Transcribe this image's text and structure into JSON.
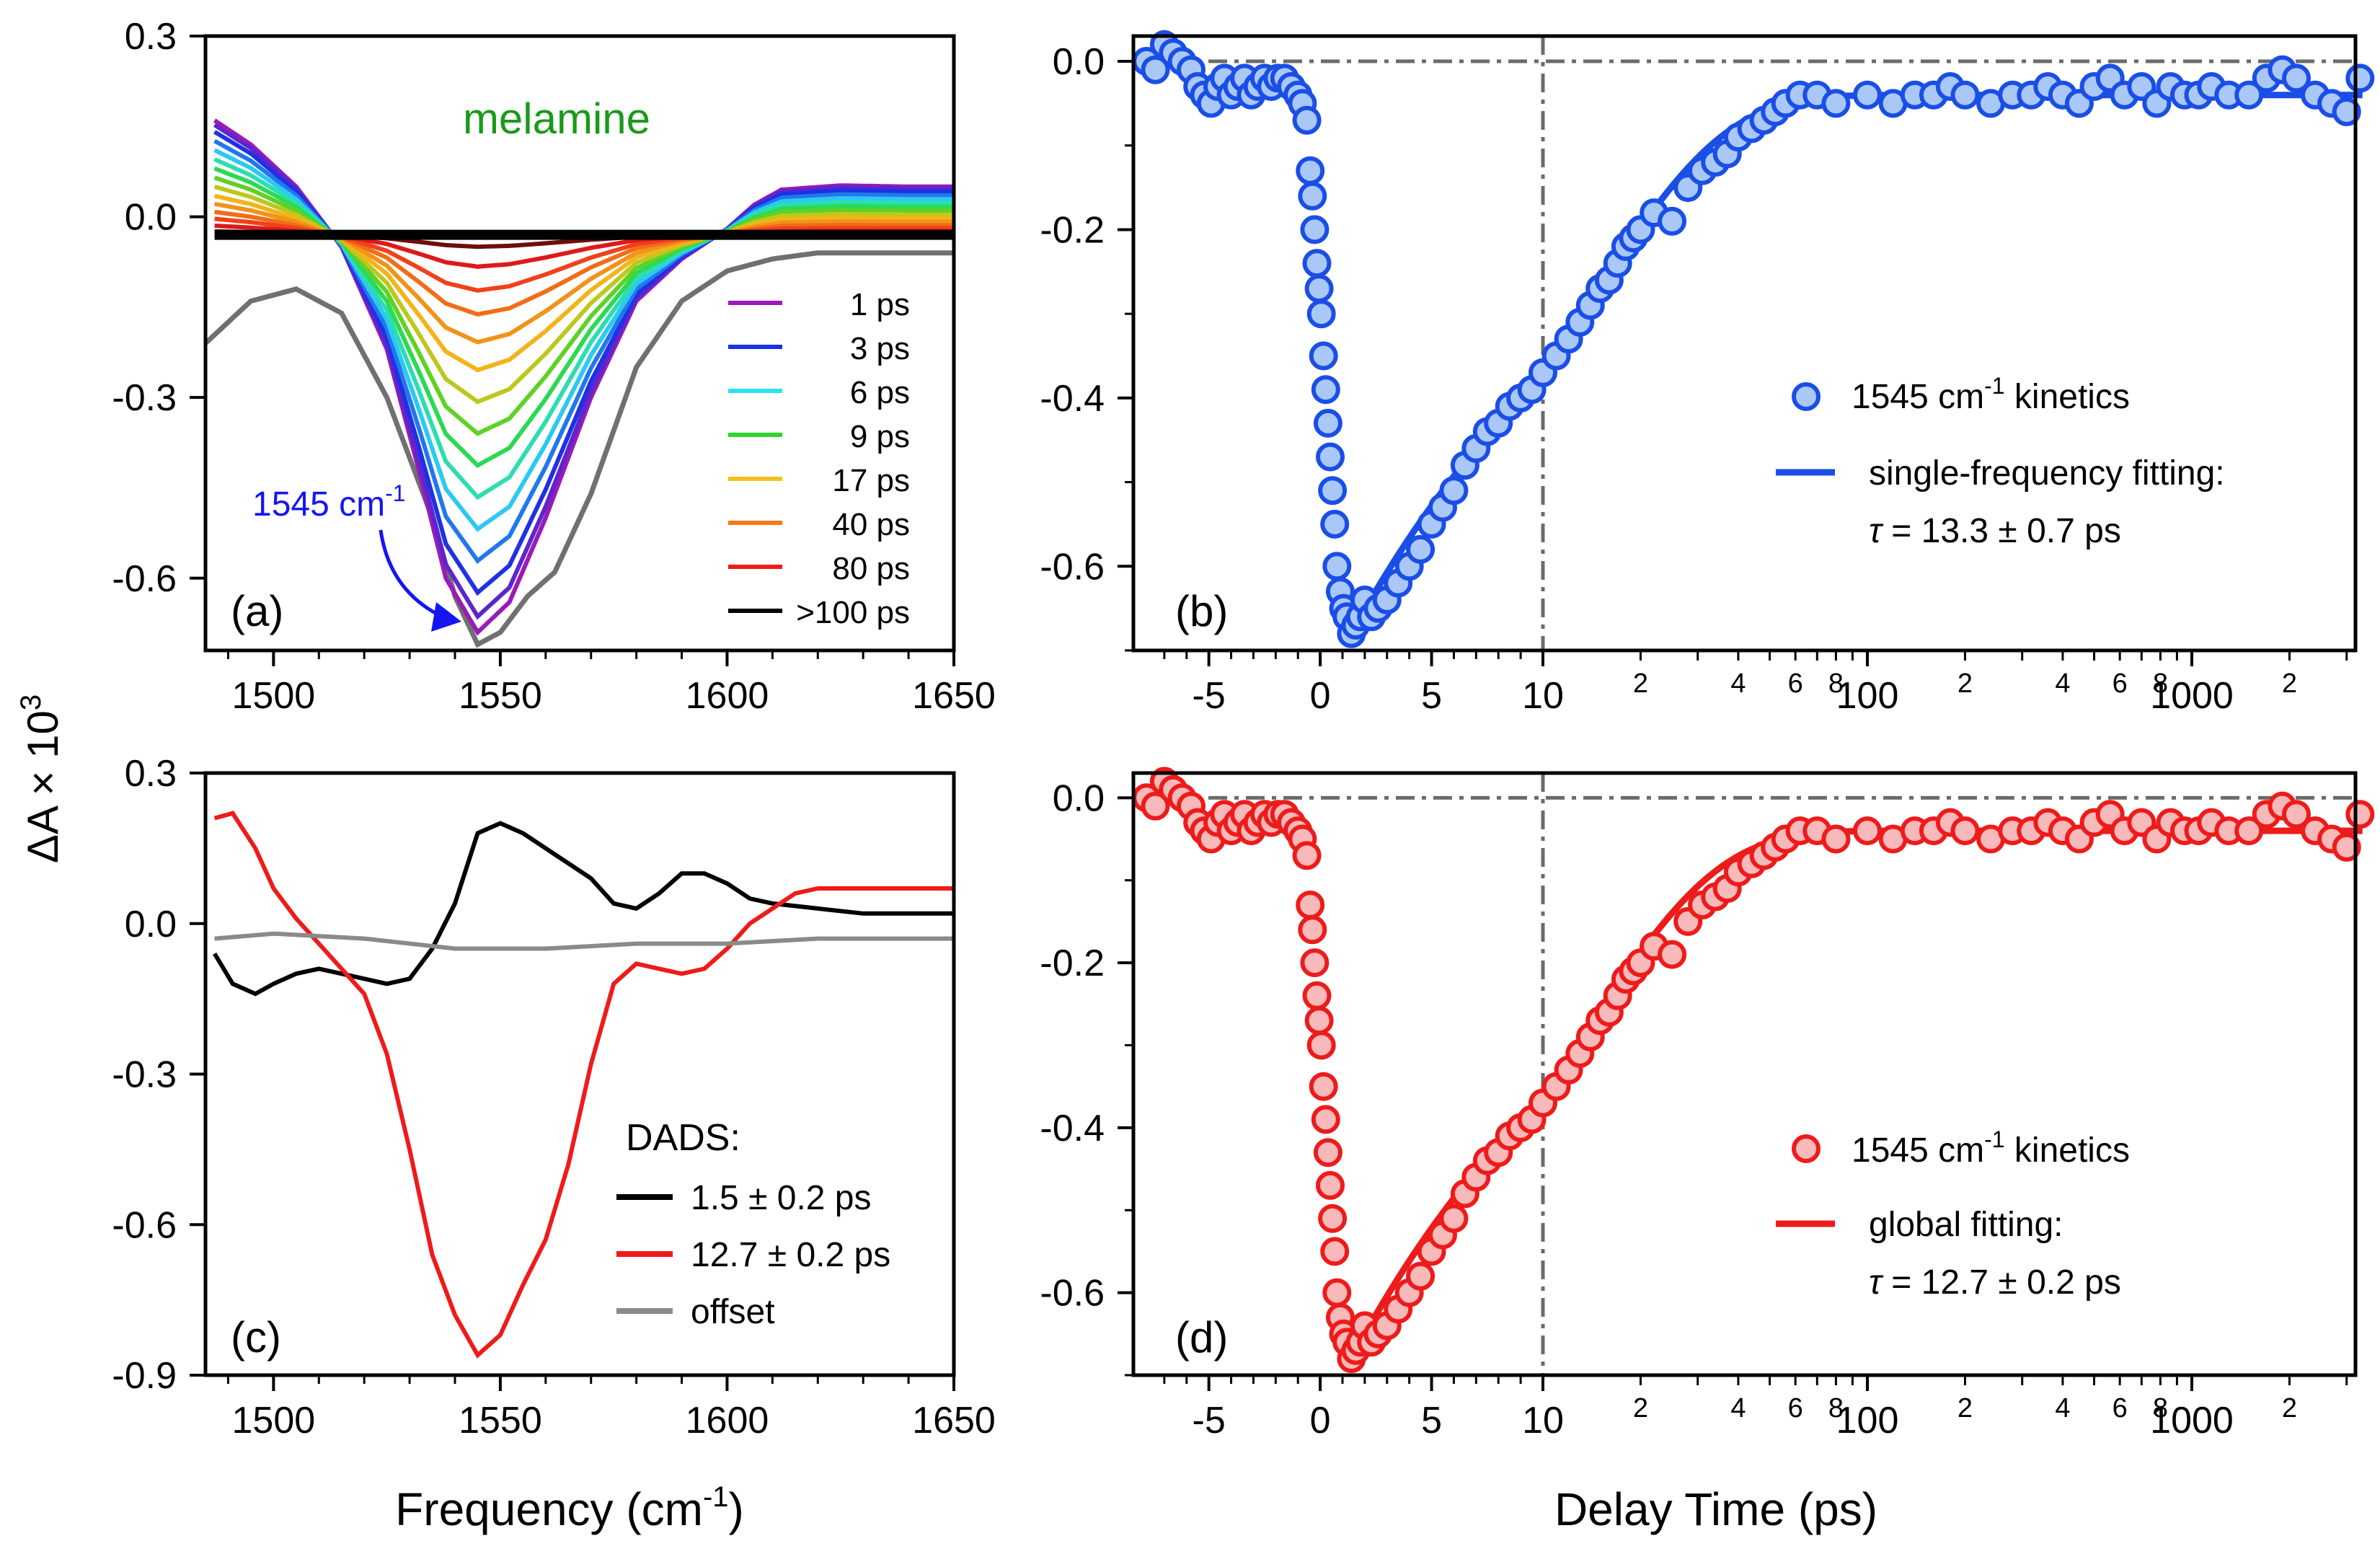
{
  "figure": {
    "y_label_main": "ΔA × 10",
    "y_label_exp": "3",
    "x_label_freq": "Frequency (cm",
    "x_label_freq_exp": "-1",
    "x_label_freq_close": ")",
    "x_label_time": "Delay Time (ps)"
  },
  "chart_data": [
    {
      "id": "a",
      "type": "line",
      "panel_label": "(a)",
      "title": "melamine",
      "xlim": [
        1485,
        1650
      ],
      "ylim": [
        -0.72,
        0.3
      ],
      "x_ticks": [
        1500,
        1550,
        1600,
        1650
      ],
      "x_tick_labels": [
        "1500",
        "1550",
        "1600",
        "1650"
      ],
      "y_ticks": [
        0.3,
        0.0,
        -0.3,
        -0.6
      ],
      "y_tick_labels": [
        "0.3",
        "0.0",
        "-0.3",
        "-0.6"
      ],
      "annotation": {
        "text": "1545 cm",
        "sup": "-1",
        "x": 1545,
        "y": -0.7,
        "color": "#1515f0"
      },
      "legend": [
        {
          "label": "1 ps",
          "color": "#9b1ab8"
        },
        {
          "label": "3 ps",
          "color": "#1733e6"
        },
        {
          "label": "6 ps",
          "color": "#2ee0f5"
        },
        {
          "label": "9 ps",
          "color": "#2ad82a"
        },
        {
          "label": "17 ps",
          "color": "#f2c21a"
        },
        {
          "label": "40 ps",
          "color": "#f27a18"
        },
        {
          "label": "80 ps",
          "color": "#ee1b1b"
        },
        {
          "label": ">100 ps",
          "color": "#000000"
        }
      ],
      "series_model": {
        "description": "transient spectra, amplitude decays with delay",
        "x": [
          1487,
          1495,
          1505,
          1515,
          1525,
          1532,
          1538,
          1545,
          1552,
          1560,
          1570,
          1580,
          1590,
          1600,
          1606,
          1612,
          1625,
          1640,
          1650
        ],
        "shape_max": [
          0.16,
          0.12,
          0.05,
          -0.05,
          -0.22,
          -0.42,
          -0.6,
          -0.69,
          -0.64,
          -0.5,
          -0.3,
          -0.14,
          -0.07,
          -0.02,
          0.02,
          0.045,
          0.052,
          0.05,
          0.05
        ],
        "offset": -0.03,
        "amplitudes": [
          1.0,
          0.96,
          0.9,
          0.82,
          0.74,
          0.66,
          0.58,
          0.5,
          0.42,
          0.34,
          0.27,
          0.2,
          0.14,
          0.08,
          0.03,
          0.0
        ]
      },
      "reference_curve": {
        "color": "#707070",
        "x": [
          1485,
          1495,
          1505,
          1515,
          1525,
          1535,
          1540,
          1545,
          1550,
          1556,
          1562,
          1570,
          1580,
          1590,
          1600,
          1610,
          1620,
          1635,
          1650
        ],
        "y": [
          -0.21,
          -0.14,
          -0.12,
          -0.16,
          -0.3,
          -0.5,
          -0.63,
          -0.71,
          -0.69,
          -0.63,
          -0.59,
          -0.46,
          -0.25,
          -0.14,
          -0.09,
          -0.07,
          -0.06,
          -0.06,
          -0.06
        ]
      }
    },
    {
      "id": "b",
      "type": "scatter",
      "panel_label": "(b)",
      "xlim": [
        -8,
        3500
      ],
      "x_axis": "linear from -8 to 10 ps, log from 10 to 3500 ps",
      "ylim": [
        -0.7,
        0.03
      ],
      "x_tick_labels": [
        "-5",
        "0",
        "5",
        "10",
        "100",
        "1000"
      ],
      "x_minor_labels": [
        "2",
        "4",
        "6",
        "8",
        "2",
        "4",
        "6",
        "8",
        "2"
      ],
      "y_ticks": [
        0.0,
        -0.2,
        -0.4,
        -0.6
      ],
      "y_tick_labels": [
        "0.0",
        "-0.2",
        "-0.4",
        "-0.6"
      ],
      "marker_edge": "#1a4ee6",
      "marker_fill": "#a9c8f7",
      "legend_points": "1545 cm",
      "legend_points_sup": "-1",
      "legend_points_tail": " kinetics",
      "legend_line": "single-frequency fitting:",
      "tau_symbol": "τ",
      "tau_text": " = 13.3 ± 0.7 ps",
      "fit_tau": 13.3,
      "points": [
        [
          -7.8,
          0.0
        ],
        [
          -7.4,
          -0.01
        ],
        [
          -7,
          0.02
        ],
        [
          -6.6,
          0.01
        ],
        [
          -6.2,
          0.0
        ],
        [
          -5.8,
          -0.01
        ],
        [
          -5.5,
          -0.03
        ],
        [
          -5.2,
          -0.04
        ],
        [
          -4.9,
          -0.05
        ],
        [
          -4.6,
          -0.03
        ],
        [
          -4.3,
          -0.02
        ],
        [
          -4,
          -0.04
        ],
        [
          -3.7,
          -0.03
        ],
        [
          -3.4,
          -0.02
        ],
        [
          -3.1,
          -0.04
        ],
        [
          -2.8,
          -0.03
        ],
        [
          -2.5,
          -0.02
        ],
        [
          -2.2,
          -0.03
        ],
        [
          -1.9,
          -0.02
        ],
        [
          -1.6,
          -0.02
        ],
        [
          -1.3,
          -0.03
        ],
        [
          -1.0,
          -0.04
        ],
        [
          -0.8,
          -0.05
        ],
        [
          -0.6,
          -0.07
        ],
        [
          -0.45,
          -0.13
        ],
        [
          -0.35,
          -0.16
        ],
        [
          -0.25,
          -0.2
        ],
        [
          -0.15,
          -0.24
        ],
        [
          -0.05,
          -0.27
        ],
        [
          0.05,
          -0.3
        ],
        [
          0.15,
          -0.35
        ],
        [
          0.25,
          -0.39
        ],
        [
          0.35,
          -0.43
        ],
        [
          0.45,
          -0.47
        ],
        [
          0.55,
          -0.51
        ],
        [
          0.65,
          -0.55
        ],
        [
          0.75,
          -0.6
        ],
        [
          0.9,
          -0.63
        ],
        [
          1.05,
          -0.65
        ],
        [
          1.2,
          -0.66
        ],
        [
          1.4,
          -0.68
        ],
        [
          1.6,
          -0.67
        ],
        [
          1.8,
          -0.66
        ],
        [
          2.0,
          -0.64
        ],
        [
          2.3,
          -0.66
        ],
        [
          2.6,
          -0.65
        ],
        [
          3.0,
          -0.64
        ],
        [
          3.5,
          -0.62
        ],
        [
          4.0,
          -0.6
        ],
        [
          4.5,
          -0.58
        ],
        [
          5.0,
          -0.55
        ],
        [
          5.5,
          -0.53
        ],
        [
          6.0,
          -0.51
        ],
        [
          6.5,
          -0.48
        ],
        [
          7.0,
          -0.46
        ],
        [
          7.5,
          -0.44
        ],
        [
          8.0,
          -0.43
        ],
        [
          8.5,
          -0.41
        ],
        [
          9.0,
          -0.4
        ],
        [
          9.5,
          -0.39
        ],
        [
          10,
          -0.37
        ],
        [
          11,
          -0.35
        ],
        [
          12,
          -0.33
        ],
        [
          13,
          -0.31
        ],
        [
          14,
          -0.29
        ],
        [
          15,
          -0.27
        ],
        [
          16,
          -0.26
        ],
        [
          17,
          -0.24
        ],
        [
          18,
          -0.22
        ],
        [
          19,
          -0.21
        ],
        [
          20,
          -0.2
        ],
        [
          22,
          -0.18
        ],
        [
          25,
          -0.19
        ],
        [
          28,
          -0.15
        ],
        [
          31,
          -0.13
        ],
        [
          34,
          -0.12
        ],
        [
          37,
          -0.11
        ],
        [
          40,
          -0.09
        ],
        [
          44,
          -0.08
        ],
        [
          48,
          -0.07
        ],
        [
          52,
          -0.06
        ],
        [
          56,
          -0.05
        ],
        [
          62,
          -0.04
        ],
        [
          70,
          -0.04
        ],
        [
          80,
          -0.05
        ],
        [
          100,
          -0.04
        ],
        [
          120,
          -0.05
        ],
        [
          140,
          -0.04
        ],
        [
          160,
          -0.04
        ],
        [
          180,
          -0.03
        ],
        [
          200,
          -0.04
        ],
        [
          240,
          -0.05
        ],
        [
          280,
          -0.04
        ],
        [
          320,
          -0.04
        ],
        [
          360,
          -0.03
        ],
        [
          400,
          -0.04
        ],
        [
          450,
          -0.05
        ],
        [
          500,
          -0.03
        ],
        [
          560,
          -0.02
        ],
        [
          620,
          -0.04
        ],
        [
          700,
          -0.03
        ],
        [
          780,
          -0.05
        ],
        [
          860,
          -0.03
        ],
        [
          950,
          -0.04
        ],
        [
          1050,
          -0.04
        ],
        [
          1150,
          -0.03
        ],
        [
          1300,
          -0.04
        ],
        [
          1500,
          -0.04
        ],
        [
          1700,
          -0.02
        ],
        [
          1900,
          -0.01
        ],
        [
          2100,
          -0.02
        ],
        [
          2400,
          -0.04
        ],
        [
          2700,
          -0.05
        ],
        [
          3000,
          -0.06
        ],
        [
          3300,
          -0.02
        ]
      ]
    },
    {
      "id": "c",
      "type": "line",
      "panel_label": "(c)",
      "xlim": [
        1485,
        1650
      ],
      "ylim": [
        -0.9,
        0.3
      ],
      "x_ticks": [
        1500,
        1550,
        1600,
        1650
      ],
      "x_tick_labels": [
        "1500",
        "1550",
        "1600",
        "1650"
      ],
      "y_ticks": [
        0.3,
        0.0,
        -0.3,
        -0.6,
        -0.9
      ],
      "y_tick_labels": [
        "0.3",
        "0.0",
        "-0.3",
        "-0.6",
        "-0.9"
      ],
      "legend_title": "DADS:",
      "series": [
        {
          "name": "1.5 ± 0.2 ps",
          "color": "#000000",
          "x": [
            1487,
            1491,
            1496,
            1500,
            1505,
            1510,
            1515,
            1520,
            1525,
            1530,
            1535,
            1540,
            1545,
            1550,
            1555,
            1560,
            1565,
            1570,
            1575,
            1580,
            1585,
            1590,
            1595,
            1600,
            1605,
            1610,
            1620,
            1630,
            1640,
            1650
          ],
          "values": [
            -0.06,
            -0.12,
            -0.14,
            -0.12,
            -0.1,
            -0.09,
            -0.1,
            -0.11,
            -0.12,
            -0.11,
            -0.05,
            0.04,
            0.18,
            0.2,
            0.18,
            0.15,
            0.12,
            0.09,
            0.04,
            0.03,
            0.06,
            0.1,
            0.1,
            0.08,
            0.05,
            0.04,
            0.03,
            0.02,
            0.02,
            0.02
          ]
        },
        {
          "name": "12.7 ± 0.2 ps",
          "color": "#ee1b1b",
          "x": [
            1487,
            1491,
            1496,
            1500,
            1505,
            1510,
            1515,
            1520,
            1525,
            1530,
            1535,
            1540,
            1545,
            1550,
            1555,
            1560,
            1565,
            1570,
            1575,
            1580,
            1585,
            1590,
            1595,
            1600,
            1605,
            1610,
            1615,
            1620,
            1630,
            1640,
            1650
          ],
          "values": [
            0.21,
            0.22,
            0.15,
            0.07,
            0.01,
            -0.04,
            -0.09,
            -0.14,
            -0.26,
            -0.45,
            -0.66,
            -0.78,
            -0.86,
            -0.82,
            -0.72,
            -0.63,
            -0.48,
            -0.28,
            -0.12,
            -0.08,
            -0.09,
            -0.1,
            -0.09,
            -0.05,
            0.0,
            0.03,
            0.06,
            0.07,
            0.07,
            0.07,
            0.07
          ]
        },
        {
          "name": "offset",
          "color": "#8a8a8a",
          "x": [
            1487,
            1500,
            1520,
            1540,
            1560,
            1580,
            1600,
            1620,
            1650
          ],
          "values": [
            -0.03,
            -0.02,
            -0.03,
            -0.05,
            -0.05,
            -0.04,
            -0.04,
            -0.03,
            -0.03
          ]
        }
      ]
    },
    {
      "id": "d",
      "type": "scatter",
      "panel_label": "(d)",
      "xlim": [
        -8,
        3500
      ],
      "x_axis": "linear from -8 to 10 ps, log from 10 to 3500 ps",
      "ylim": [
        -0.7,
        0.03
      ],
      "x_tick_labels": [
        "-5",
        "0",
        "5",
        "10",
        "100",
        "1000"
      ],
      "x_minor_labels": [
        "2",
        "4",
        "6",
        "8",
        "2",
        "4",
        "6",
        "8",
        "2"
      ],
      "y_ticks": [
        0.0,
        -0.2,
        -0.4,
        -0.6
      ],
      "y_tick_labels": [
        "0.0",
        "-0.2",
        "-0.4",
        "-0.6"
      ],
      "marker_edge": "#ee1b1b",
      "marker_fill": "#f7b9b9",
      "legend_points": "1545 cm",
      "legend_points_sup": "-1",
      "legend_points_tail": " kinetics",
      "legend_line": "global fitting:",
      "tau_symbol": "τ",
      "tau_text": " = 12.7 ± 0.2 ps",
      "fit_tau": 12.7,
      "points_same_as": "b"
    }
  ]
}
